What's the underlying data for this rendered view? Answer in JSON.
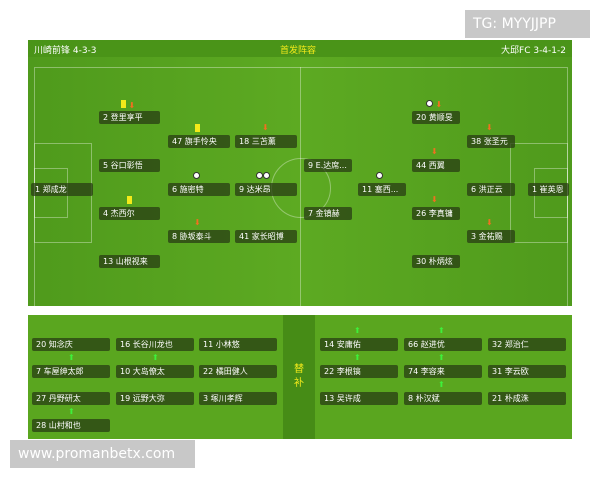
{
  "header": {
    "home": "川崎前锋 4-3-3",
    "title": "首发阵容",
    "away": "大邱FC 3-4-1-2"
  },
  "home": [
    {
      "label": "1 郑成龙"
    },
    {
      "label": "2 登里享平"
    },
    {
      "label": "5 谷口彰悟"
    },
    {
      "label": "4 杰西尔"
    },
    {
      "label": "13 山根视来"
    },
    {
      "label": "47 旗手怜央"
    },
    {
      "label": "6 施密特"
    },
    {
      "label": "8 胁坂泰斗"
    },
    {
      "label": "18 三苫薰"
    },
    {
      "label": "9 达米昂"
    },
    {
      "label": "41 家长昭博"
    }
  ],
  "away": [
    {
      "label": "9 E.达席..."
    },
    {
      "label": "7 金镇赫"
    },
    {
      "label": "11 塞西..."
    },
    {
      "label": "20 黄顺旻"
    },
    {
      "label": "44 西翼"
    },
    {
      "label": "26 李真镛"
    },
    {
      "label": "30 朴炳炫"
    },
    {
      "label": "38 张圣元"
    },
    {
      "label": "6 洪正云"
    },
    {
      "label": "3 金祐赐"
    },
    {
      "label": "1 崔英恩"
    }
  ],
  "subs_label": "替补",
  "home_subs": [
    "20 知念庆",
    "16 长谷川龙也",
    "11 小林悠",
    "7 车屋绅太郎",
    "10 大岛僚太",
    "22 橘田健人",
    "27 丹野研太",
    "19 远野大弥",
    "3 塚川孝辉",
    "28 山村和也"
  ],
  "away_subs": [
    "14 安庸佑",
    "66 赵进优",
    "32 郑治仁",
    "22 李根镐",
    "74 李容来",
    "31 李云欧",
    "13 吴许成",
    "8 朴汉斌",
    "21 朴成洙"
  ],
  "icons": {
    "yellow_card": "#f3ea1a",
    "sub_off": "#f07020",
    "sub_on": "#3ef03a",
    "goal": "ball"
  },
  "watermarks": {
    "top": "TG: MYYJJPP",
    "bottom": "www.promanbetx.com"
  }
}
